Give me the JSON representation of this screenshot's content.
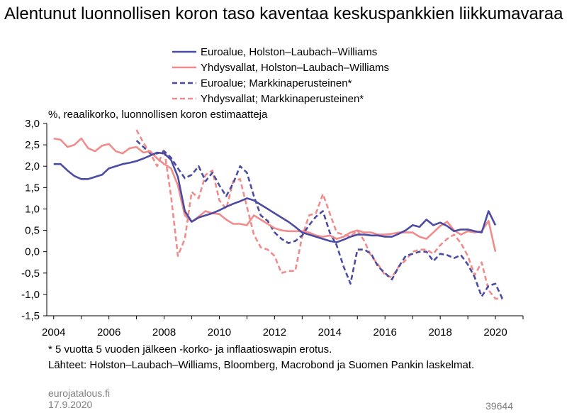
{
  "title": "Alentunut luonnollisen koron taso kaventaa keskuspankkien liikkumavaraa",
  "unit_label": "%, reaalikorko, luonnollisen koron estimaatteja",
  "footnote_1": "* 5 vuotta 5 vuoden jälkeen -korko- ja inflaatioswapin erotus.",
  "footnote_2": "Lähteet: Holston–Laubach–Williams, Bloomberg, Macrobond ja Suomen Pankin laskelmat.",
  "source_site": "eurojatalous.fi",
  "source_date": "17.9.2020",
  "chart_code": "39644",
  "colors": {
    "euro": "#4b4ba3",
    "us": "#f08c8c"
  },
  "chart_data": {
    "type": "line",
    "xlabel": "",
    "ylabel": "%, reaalikorko, luonnollisen koron estimaatteja",
    "xlim": [
      2003.75,
      2021.0
    ],
    "ylim": [
      -1.5,
      3.0
    ],
    "xticks": [
      "2004",
      "2006",
      "2008",
      "2010",
      "2012",
      "2014",
      "2016",
      "2018",
      "2020"
    ],
    "yticks": [
      "3,0",
      "2,5",
      "2,0",
      "1,5",
      "1,0",
      "0,5",
      "0,0",
      "-0,5",
      "-1,0",
      "-1,5"
    ],
    "grid": false,
    "legend_position": "top-right",
    "series": [
      {
        "name": "Euroalue,  Holston–Laubach–Williams",
        "color": "#4b4ba3",
        "dash": "solid",
        "x": [
          2004.0,
          2004.25,
          2004.5,
          2004.75,
          2005.0,
          2005.25,
          2005.5,
          2005.75,
          2006.0,
          2006.25,
          2006.5,
          2006.75,
          2007.0,
          2007.25,
          2007.5,
          2007.75,
          2008.0,
          2008.25,
          2008.5,
          2008.75,
          2009.0,
          2009.25,
          2009.5,
          2009.75,
          2010.0,
          2010.25,
          2010.5,
          2010.75,
          2011.0,
          2011.25,
          2011.5,
          2011.75,
          2012.0,
          2012.25,
          2012.5,
          2012.75,
          2013.0,
          2013.25,
          2013.5,
          2013.75,
          2014.0,
          2014.25,
          2014.5,
          2014.75,
          2015.0,
          2015.25,
          2015.5,
          2015.75,
          2016.0,
          2016.25,
          2016.5,
          2016.75,
          2017.0,
          2017.25,
          2017.5,
          2017.75,
          2018.0,
          2018.25,
          2018.5,
          2018.75,
          2019.0,
          2019.25,
          2019.5,
          2019.75,
          2020.0
        ],
        "y": [
          2.05,
          2.05,
          1.9,
          1.77,
          1.7,
          1.7,
          1.75,
          1.8,
          1.95,
          2.0,
          2.05,
          2.08,
          2.12,
          2.18,
          2.25,
          2.32,
          2.3,
          2.15,
          1.75,
          0.95,
          0.7,
          0.8,
          0.85,
          0.9,
          0.97,
          1.05,
          1.12,
          1.18,
          1.25,
          1.2,
          1.1,
          1.0,
          0.9,
          0.8,
          0.7,
          0.58,
          0.45,
          0.4,
          0.35,
          0.3,
          0.25,
          0.22,
          0.28,
          0.35,
          0.4,
          0.4,
          0.38,
          0.38,
          0.35,
          0.35,
          0.42,
          0.5,
          0.62,
          0.58,
          0.75,
          0.62,
          0.68,
          0.6,
          0.48,
          0.52,
          0.52,
          0.48,
          0.45,
          0.95,
          0.62
        ]
      },
      {
        "name": "Yhdysvallat,  Holston–Laubach–Williams",
        "color": "#f08c8c",
        "dash": "solid",
        "x": [
          2004.0,
          2004.25,
          2004.5,
          2004.75,
          2005.0,
          2005.25,
          2005.5,
          2005.75,
          2006.0,
          2006.25,
          2006.5,
          2006.75,
          2007.0,
          2007.25,
          2007.5,
          2007.75,
          2008.0,
          2008.25,
          2008.5,
          2008.75,
          2009.0,
          2009.25,
          2009.5,
          2009.75,
          2010.0,
          2010.25,
          2010.5,
          2010.75,
          2011.0,
          2011.25,
          2011.5,
          2011.75,
          2012.0,
          2012.25,
          2012.5,
          2012.75,
          2013.0,
          2013.25,
          2013.5,
          2013.75,
          2014.0,
          2014.25,
          2014.5,
          2014.75,
          2015.0,
          2015.25,
          2015.5,
          2015.75,
          2016.0,
          2016.25,
          2016.5,
          2016.75,
          2017.0,
          2017.25,
          2017.5,
          2017.75,
          2018.0,
          2018.25,
          2018.5,
          2018.75,
          2019.0,
          2019.25,
          2019.5,
          2019.75,
          2020.0
        ],
        "y": [
          2.65,
          2.62,
          2.45,
          2.5,
          2.65,
          2.42,
          2.35,
          2.48,
          2.52,
          2.35,
          2.3,
          2.42,
          2.45,
          2.32,
          2.35,
          2.18,
          2.05,
          1.95,
          1.55,
          0.85,
          0.7,
          0.82,
          0.95,
          0.9,
          0.88,
          0.75,
          0.65,
          0.65,
          0.62,
          0.85,
          0.75,
          0.65,
          0.55,
          0.5,
          0.48,
          0.48,
          0.48,
          0.45,
          0.38,
          0.35,
          0.38,
          0.3,
          0.35,
          0.45,
          0.5,
          0.45,
          0.45,
          0.4,
          0.4,
          0.42,
          0.45,
          0.45,
          0.45,
          0.35,
          0.3,
          0.45,
          0.6,
          0.7,
          0.5,
          0.4,
          0.48,
          0.45,
          0.48,
          0.72,
          0.0
        ]
      },
      {
        "name": "Euroalue; Markkinaperusteinen*",
        "color": "#4b4ba3",
        "dash": "dashed",
        "x": [
          2007.0,
          2007.25,
          2007.5,
          2007.75,
          2008.0,
          2008.25,
          2008.5,
          2008.75,
          2009.0,
          2009.25,
          2009.5,
          2009.75,
          2010.0,
          2010.25,
          2010.5,
          2010.75,
          2011.0,
          2011.25,
          2011.5,
          2011.75,
          2012.0,
          2012.25,
          2012.5,
          2012.75,
          2013.0,
          2013.25,
          2013.5,
          2013.75,
          2014.0,
          2014.25,
          2014.5,
          2014.75,
          2015.0,
          2015.25,
          2015.5,
          2015.75,
          2016.0,
          2016.25,
          2016.5,
          2016.75,
          2017.0,
          2017.25,
          2017.5,
          2017.75,
          2018.0,
          2018.25,
          2018.5,
          2018.75,
          2019.0,
          2019.25,
          2019.5,
          2019.75,
          2020.0,
          2020.25
        ],
        "y": [
          2.6,
          2.45,
          2.3,
          2.3,
          2.35,
          2.2,
          1.95,
          1.72,
          1.8,
          2.0,
          1.65,
          1.85,
          1.55,
          1.3,
          1.6,
          2.0,
          1.85,
          1.3,
          0.85,
          0.72,
          0.45,
          0.3,
          0.2,
          0.25,
          0.38,
          0.62,
          0.82,
          0.95,
          0.45,
          0.15,
          -0.35,
          -0.75,
          0.05,
          0.05,
          -0.05,
          -0.35,
          -0.5,
          -0.65,
          -0.35,
          -0.1,
          -0.05,
          0.0,
          0.0,
          -0.22,
          -0.05,
          -0.08,
          -0.15,
          -0.08,
          -0.3,
          -0.6,
          -1.05,
          -0.8,
          -0.75,
          -1.1
        ]
      },
      {
        "name": "Yhdysvallat; Markkinaperusteinen*",
        "color": "#f08c8c",
        "dash": "dashed",
        "x": [
          2007.0,
          2007.25,
          2007.5,
          2007.75,
          2008.0,
          2008.25,
          2008.5,
          2008.75,
          2009.0,
          2009.25,
          2009.5,
          2009.75,
          2010.0,
          2010.25,
          2010.5,
          2010.75,
          2011.0,
          2011.25,
          2011.5,
          2011.75,
          2012.0,
          2012.25,
          2012.5,
          2012.75,
          2013.0,
          2013.25,
          2013.5,
          2013.75,
          2014.0,
          2014.25,
          2014.5,
          2014.75,
          2015.0,
          2015.25,
          2015.5,
          2015.75,
          2016.0,
          2016.25,
          2016.5,
          2016.75,
          2017.0,
          2017.25,
          2017.5,
          2017.75,
          2018.0,
          2018.25,
          2018.5,
          2018.75,
          2019.0,
          2019.25,
          2019.5,
          2019.75,
          2020.0,
          2020.25
        ],
        "y": [
          2.85,
          2.55,
          2.3,
          2.0,
          2.4,
          1.3,
          -0.1,
          0.3,
          1.4,
          1.25,
          1.8,
          1.9,
          1.2,
          1.0,
          1.65,
          1.7,
          1.05,
          0.4,
          0.1,
          0.05,
          -0.1,
          -0.5,
          -0.45,
          -0.45,
          0.35,
          0.85,
          0.9,
          1.35,
          0.9,
          0.45,
          0.4,
          0.35,
          0.5,
          0.25,
          -0.1,
          -0.3,
          -0.55,
          -0.6,
          -0.35,
          -0.2,
          0.0,
          0.05,
          0.05,
          -0.05,
          0.15,
          0.3,
          0.4,
          0.2,
          -0.1,
          -0.55,
          -0.25,
          -0.9,
          -1.1,
          -1.1
        ]
      }
    ]
  }
}
